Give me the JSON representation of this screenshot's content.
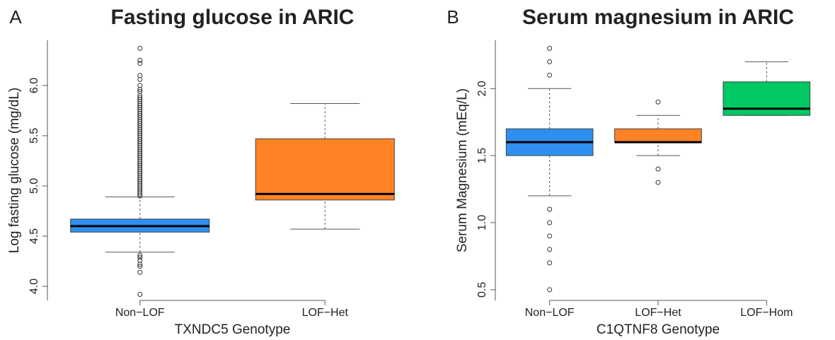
{
  "chart_data": [
    {
      "type": "box",
      "panel_label": "A",
      "title": "Fasting glucose in ARIC",
      "xlabel": "TXNDC5 Genotype",
      "ylabel": "Log fasting glucose (mg/dL)",
      "categories": [
        "Non−LOF",
        "LOF−Het"
      ],
      "colors": [
        "#2e8ff0",
        "#ff8224"
      ],
      "ylim": [
        3.86,
        6.45
      ],
      "yticks": [
        {
          "value": 4,
          "label": "4.0"
        },
        4.5,
        {
          "value": 5,
          "label": "5.0"
        },
        5.5,
        {
          "value": 6,
          "label": "6.0"
        }
      ],
      "boxes": [
        {
          "whislo": 4.34,
          "q1": 4.54,
          "med": 4.6,
          "q3": 4.67,
          "whishi": 4.89,
          "fliers": [
            6.37,
            6.25,
            6.22,
            6.1,
            6.06,
            6.0,
            5.96,
            5.94,
            5.9,
            5.88,
            5.86,
            5.84,
            5.82,
            5.8,
            5.78,
            5.76,
            5.74,
            5.72,
            5.7,
            5.68,
            5.66,
            5.64,
            5.62,
            5.6,
            5.58,
            5.56,
            5.54,
            5.52,
            5.5,
            5.48,
            5.46,
            5.44,
            5.42,
            5.4,
            5.38,
            5.36,
            5.34,
            5.32,
            5.3,
            5.28,
            5.26,
            5.24,
            5.22,
            5.2,
            5.18,
            5.16,
            5.14,
            5.12,
            5.1,
            5.08,
            5.06,
            5.04,
            5.02,
            5.0,
            4.98,
            4.96,
            4.94,
            4.92,
            4.9,
            4.31,
            4.29,
            4.26,
            4.22,
            4.2,
            4.14,
            3.92
          ]
        },
        {
          "whislo": 4.57,
          "q1": 4.86,
          "med": 4.92,
          "q3": 5.47,
          "whishi": 5.82,
          "fliers": []
        }
      ]
    },
    {
      "type": "box",
      "panel_label": "B",
      "title": "Serum magnesium in ARIC",
      "xlabel": "C1QTNF8 Genotype",
      "ylabel": "Serum Magnesium (mEq/L)",
      "categories": [
        "Non−LOF",
        "LOF−Het",
        "LOF−Hom"
      ],
      "colors": [
        "#2e8ff0",
        "#ff8224",
        "#00c862"
      ],
      "ylim": [
        0.42,
        2.36
      ],
      "yticks": [
        0.5,
        {
          "value": 1,
          "label": "1.0"
        },
        1.5,
        {
          "value": 2,
          "label": "2.0"
        }
      ],
      "boxes": [
        {
          "whislo": 1.2,
          "q1": 1.5,
          "med": 1.6,
          "q3": 1.7,
          "whishi": 2.0,
          "fliers": [
            2.3,
            2.2,
            2.1,
            1.1,
            1.0,
            0.9,
            0.8,
            0.7,
            0.5
          ]
        },
        {
          "whislo": 1.5,
          "q1": 1.6,
          "med": 1.6,
          "q3": 1.7,
          "whishi": 1.8,
          "fliers": [
            1.9,
            1.4,
            1.3
          ]
        },
        {
          "whislo": 1.8,
          "q1": 1.8,
          "med": 1.85,
          "q3": 2.05,
          "whishi": 2.2,
          "fliers": []
        }
      ]
    }
  ]
}
